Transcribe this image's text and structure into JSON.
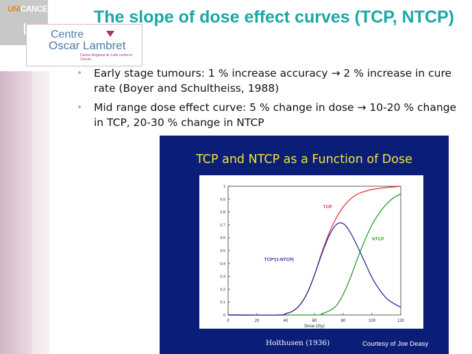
{
  "logos": {
    "unicancer": {
      "part1": "UNI",
      "part2": "CANCER"
    },
    "centre": {
      "line1": "Centre",
      "line2": "Oscar Lambret",
      "tagline": "Centre Régional de Lutte contre le Cancer"
    }
  },
  "slide": {
    "title": "The slope of dose effect curves (TCP, NTCP)",
    "bullets": [
      {
        "text": "Early stage tumours: 1 % increase accuracy → 2 % increase in cure rate (Boyer and Schultheiss, 1988)"
      },
      {
        "text": "Mid range dose effect curve: 5 % change in dose → 10-20 % change in TCP, 20-30 % change in NTCP"
      }
    ]
  },
  "figure": {
    "credit_left": "Holthusen (1936)",
    "credit_right": "Courtesy of Joe Deasy"
  },
  "chart_data": {
    "type": "line",
    "title": "TCP and NTCP as a Function of Dose",
    "xlabel": "Dose (Gy)",
    "ylabel": "",
    "xlim": [
      0,
      120
    ],
    "ylim": [
      0,
      1
    ],
    "xticks": [
      0,
      20,
      40,
      60,
      80,
      100,
      120
    ],
    "yticks": [
      0,
      0.1,
      0.2,
      0.3,
      0.4,
      0.5,
      0.6,
      0.7,
      0.8,
      0.9,
      1
    ],
    "grid": false,
    "series": [
      {
        "name": "TCP",
        "color": "#e03030",
        "x": [
          0,
          35,
          40,
          45,
          50,
          55,
          60,
          65,
          70,
          75,
          80,
          85,
          90,
          95,
          100,
          110,
          120
        ],
        "y": [
          0,
          0.0,
          0.01,
          0.03,
          0.08,
          0.17,
          0.31,
          0.48,
          0.63,
          0.75,
          0.84,
          0.9,
          0.94,
          0.96,
          0.975,
          0.99,
          1.0
        ]
      },
      {
        "name": "NTCP",
        "color": "#2a9a2a",
        "x": [
          0,
          60,
          65,
          70,
          75,
          80,
          85,
          90,
          95,
          100,
          105,
          110,
          115,
          120
        ],
        "y": [
          0,
          0.0,
          0.01,
          0.03,
          0.07,
          0.16,
          0.29,
          0.44,
          0.58,
          0.7,
          0.79,
          0.86,
          0.91,
          0.94
        ]
      },
      {
        "name": "TCP*(1-NTCP)",
        "color": "#2a2a9e",
        "x": [
          0,
          35,
          40,
          45,
          50,
          55,
          60,
          65,
          70,
          75,
          80,
          85,
          90,
          95,
          100,
          105,
          110,
          115,
          120
        ],
        "y": [
          0,
          0.0,
          0.01,
          0.03,
          0.08,
          0.17,
          0.31,
          0.47,
          0.61,
          0.7,
          0.71,
          0.64,
          0.53,
          0.41,
          0.29,
          0.2,
          0.13,
          0.09,
          0.06
        ]
      }
    ],
    "annotations": [
      {
        "text": "TCP",
        "x": 66,
        "y": 0.83
      },
      {
        "text": "NTCP",
        "x": 100,
        "y": 0.58
      },
      {
        "text": "TCP*(1-NTCP)",
        "x": 25,
        "y": 0.42
      }
    ]
  }
}
